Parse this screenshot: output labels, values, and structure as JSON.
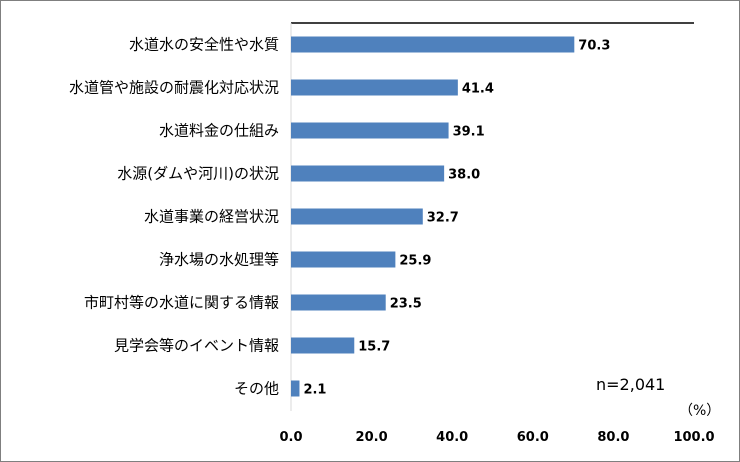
{
  "chart_data": {
    "type": "bar",
    "orientation": "horizontal",
    "categories": [
      "水道水の安全性や水質",
      "水道管や施設の耐震化対応状況",
      "水道料金の仕組み",
      "水源(ダムや河川)の状況",
      "水道事業の経営状況",
      "浄水場の水処理等",
      "市町村等の水道に関する情報",
      "見学会等のイベント情報",
      "その他"
    ],
    "values": [
      70.3,
      41.4,
      39.1,
      38.0,
      32.7,
      25.9,
      23.5,
      15.7,
      2.1
    ],
    "value_labels": [
      "70.3",
      "41.4",
      "39.1",
      "38.0",
      "32.7",
      "25.9",
      "23.5",
      "15.7",
      "2.1"
    ],
    "xlim": [
      0,
      100
    ],
    "x_ticks": [
      "0.0",
      "20.0",
      "40.0",
      "60.0",
      "80.0",
      "100.0"
    ],
    "x_tick_values": [
      0,
      20,
      40,
      60,
      80,
      100
    ],
    "unit_label": "（%）",
    "note": "n=2,041",
    "bar_color": "#4f81bd",
    "grid": false,
    "legend": "none"
  }
}
